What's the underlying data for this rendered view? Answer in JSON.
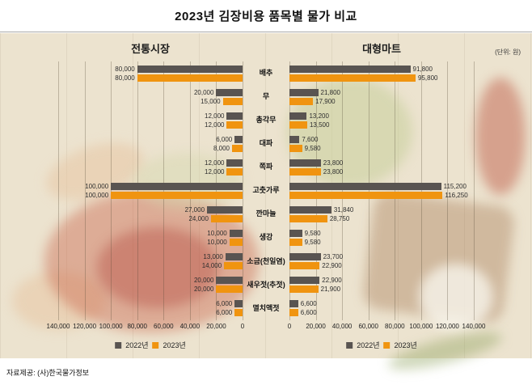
{
  "title": "2023년 김장비용 품목별 물가 비교",
  "unit_label": "(단위: 원)",
  "source": "자료제공: (사)한국물가정보",
  "legend": {
    "y2022": "2022년",
    "y2023": "2023년"
  },
  "colors": {
    "y2022": "#595451",
    "y2023": "#f09410"
  },
  "chart_data": [
    {
      "type": "bar",
      "title": "전통시장",
      "orientation": "horizontal-right-to-left",
      "categories": [
        "배추",
        "무",
        "총각무",
        "대파",
        "쪽파",
        "고춧가루",
        "깐마늘",
        "생강",
        "소금(천일염)",
        "새우젓(추젓)",
        "멸치액젓"
      ],
      "series": [
        {
          "name": "2022년",
          "values": [
            80000,
            20000,
            12000,
            6000,
            12000,
            100000,
            27000,
            10000,
            13000,
            20000,
            6000
          ]
        },
        {
          "name": "2023년",
          "values": [
            80000,
            15000,
            12000,
            8000,
            12000,
            100000,
            24000,
            10000,
            14000,
            20000,
            6000
          ]
        }
      ],
      "xlim": [
        0,
        140000
      ],
      "grid": true,
      "legend_position": "bottom",
      "ticks": [
        "140,000",
        "120,000",
        "100,000",
        "80,000",
        "60,000",
        "40,000",
        "20,000",
        "0"
      ]
    },
    {
      "type": "bar",
      "title": "대형마트",
      "orientation": "horizontal-left-to-right",
      "categories": [
        "배추",
        "무",
        "총각무",
        "대파",
        "쪽파",
        "고춧가루",
        "깐마늘",
        "생강",
        "소금(천일염)",
        "새우젓(추젓)",
        "멸치액젓"
      ],
      "series": [
        {
          "name": "2022년",
          "values": [
            91800,
            21800,
            13200,
            7600,
            23800,
            115200,
            31840,
            9580,
            23700,
            22900,
            6600
          ]
        },
        {
          "name": "2023년",
          "values": [
            95800,
            17900,
            13500,
            9580,
            23800,
            116250,
            28750,
            9580,
            22900,
            21900,
            6600
          ]
        }
      ],
      "xlim": [
        0,
        140000
      ],
      "grid": true,
      "legend_position": "bottom",
      "ticks": [
        "0",
        "20,000",
        "40,000",
        "60,000",
        "80,000",
        "100,000",
        "120,000",
        "140,000"
      ]
    }
  ]
}
